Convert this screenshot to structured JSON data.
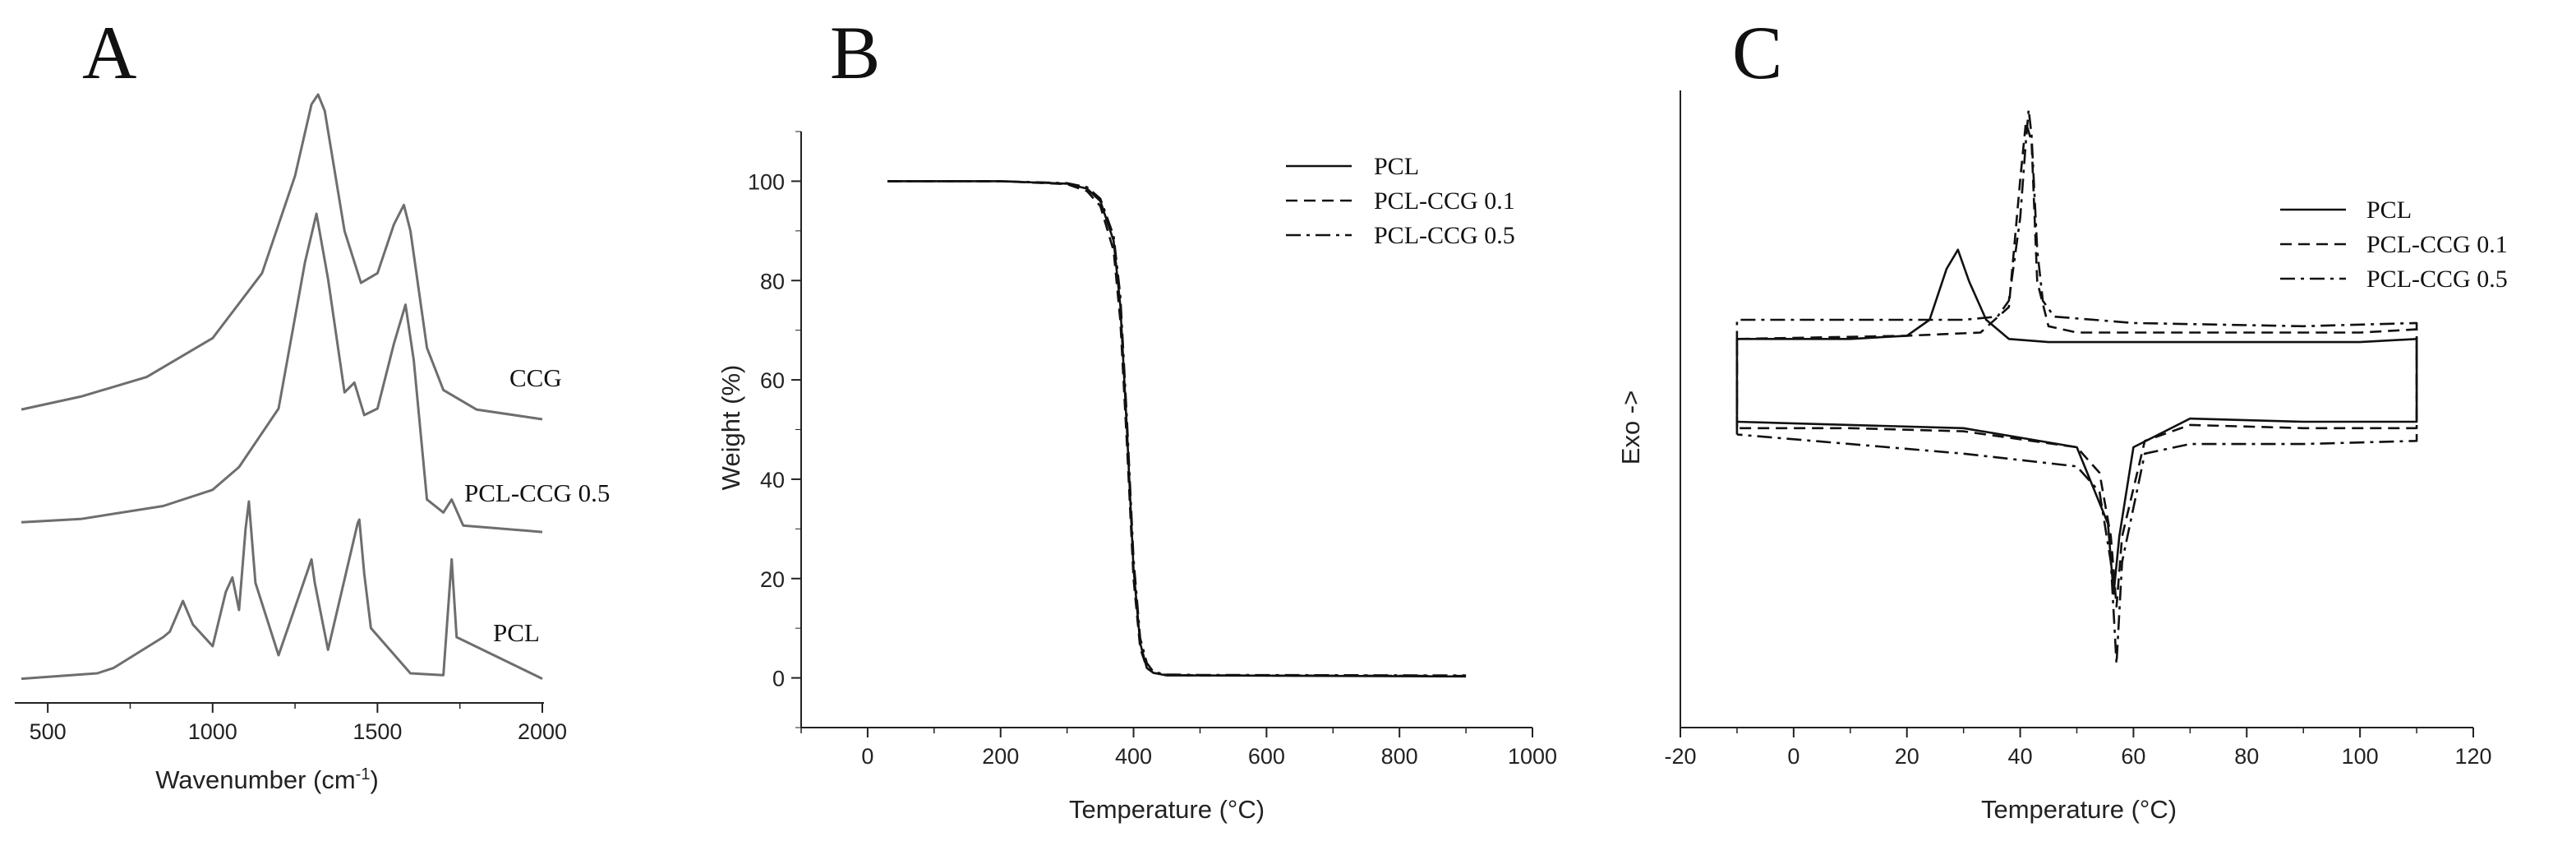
{
  "chart_data": [
    {
      "panel": "A",
      "type": "line",
      "xlabel": "Wavenumber (cm",
      "xlabel_sup": "-1",
      "xlabel_close": ")",
      "xlim": [
        400,
        2000
      ],
      "xticks": [
        500,
        1000,
        1500,
        2000
      ],
      "y_axis_shown": false,
      "color": "#6e6e6e",
      "series": [
        {
          "name": "CCG",
          "baseline": "top",
          "x": [
            420,
            600,
            800,
            1000,
            1150,
            1250,
            1300,
            1320,
            1340,
            1400,
            1450,
            1500,
            1550,
            1580,
            1600,
            1650,
            1700,
            1800,
            2000
          ],
          "y": [
            0.03,
            0.07,
            0.13,
            0.25,
            0.45,
            0.75,
            0.97,
            1.0,
            0.95,
            0.58,
            0.42,
            0.45,
            0.6,
            0.66,
            0.58,
            0.22,
            0.09,
            0.03,
            0.0
          ]
        },
        {
          "name": "PCL-CCG 0.5",
          "baseline": "middle",
          "x": [
            420,
            600,
            850,
            1000,
            1080,
            1200,
            1280,
            1315,
            1350,
            1400,
            1430,
            1460,
            1500,
            1550,
            1585,
            1610,
            1650,
            1700,
            1725,
            1760,
            2000
          ],
          "y": [
            0.05,
            0.06,
            0.1,
            0.15,
            0.22,
            0.4,
            0.85,
            1.0,
            0.8,
            0.45,
            0.48,
            0.38,
            0.4,
            0.6,
            0.72,
            0.55,
            0.12,
            0.08,
            0.12,
            0.04,
            0.02
          ]
        },
        {
          "name": "PCL",
          "baseline": "bottom",
          "x": [
            420,
            650,
            700,
            850,
            870,
            910,
            940,
            960,
            1000,
            1040,
            1060,
            1080,
            1100,
            1110,
            1130,
            1200,
            1285,
            1300,
            1310,
            1350,
            1440,
            1445,
            1460,
            1480,
            1600,
            1700,
            1725,
            1740,
            2000
          ],
          "y": [
            0.02,
            0.05,
            0.08,
            0.25,
            0.28,
            0.45,
            0.32,
            0.28,
            0.2,
            0.5,
            0.58,
            0.4,
            0.85,
            1.0,
            0.55,
            0.15,
            0.6,
            0.68,
            0.55,
            0.18,
            0.88,
            0.9,
            0.6,
            0.3,
            0.05,
            0.04,
            0.68,
            0.25,
            0.02
          ]
        }
      ]
    },
    {
      "panel": "B",
      "type": "line",
      "xlabel": "Temperature (",
      "xlabel_unit": "°C)",
      "ylabel": "Weight (%)",
      "xlim": [
        -100,
        1000
      ],
      "ylim": [
        -10,
        110
      ],
      "xticks": [
        0,
        200,
        400,
        600,
        800,
        1000
      ],
      "yticks": [
        0,
        20,
        40,
        60,
        80,
        100
      ],
      "legend_position": "top-right",
      "series": [
        {
          "name": "PCL",
          "style": "solid",
          "x": [
            30,
            100,
            200,
            300,
            330,
            350,
            370,
            380,
            390,
            400,
            410,
            420,
            430,
            450,
            500,
            900
          ],
          "y": [
            100,
            100,
            100,
            99.5,
            98.5,
            96,
            88,
            75,
            50,
            22,
            7,
            2,
            1,
            0.5,
            0.5,
            0.3
          ]
        },
        {
          "name": "PCL-CCG 0.1",
          "style": "dashed",
          "x": [
            30,
            100,
            200,
            300,
            330,
            350,
            370,
            380,
            390,
            400,
            410,
            420,
            430,
            450,
            500,
            900
          ],
          "y": [
            100,
            100,
            100,
            99.4,
            98,
            95,
            86,
            72,
            47,
            20,
            6,
            2,
            1,
            0.6,
            0.5,
            0.4
          ]
        },
        {
          "name": "PCL-CCG 0.5",
          "style": "dashdot",
          "x": [
            30,
            100,
            200,
            300,
            330,
            350,
            370,
            380,
            390,
            400,
            410,
            420,
            430,
            450,
            500,
            900
          ],
          "y": [
            100,
            100,
            100,
            99.6,
            98.8,
            96.5,
            89,
            77,
            52,
            24,
            8,
            3,
            1.2,
            0.7,
            0.6,
            0.5
          ]
        }
      ]
    },
    {
      "panel": "C",
      "type": "line",
      "xlabel": "Temperature (",
      "xlabel_unit": "°C)",
      "ylabel": "Exo ->",
      "xlim": [
        -20,
        120
      ],
      "ylim": [
        0,
        100
      ],
      "xticks": [
        -20,
        0,
        20,
        40,
        60,
        80,
        100,
        120
      ],
      "y_ticks_shown": false,
      "legend_position": "top-right",
      "series": [
        {
          "name": "PCL",
          "style": "solid",
          "loops": [
            {
              "x": [
                -10,
                -10,
                10,
                20,
                24,
                27,
                29,
                31,
                34,
                38,
                45,
                60,
                80,
                100,
                110,
                110,
                90,
                70,
                60,
                57.5,
                56.5,
                55.5,
                50,
                30,
                10,
                -10
              ],
              "y": [
                48,
                61,
                61,
                61.5,
                64,
                72,
                75,
                70,
                64,
                61,
                60.5,
                60.5,
                60.5,
                60.5,
                61,
                48,
                48,
                48.5,
                44,
                30,
                21,
                32,
                44,
                47,
                47.5,
                48
              ]
            }
          ]
        },
        {
          "name": "PCL-CCG 0.1",
          "style": "dashed",
          "loops": [
            {
              "x": [
                -10,
                -10,
                20,
                33,
                38,
                40,
                41,
                42,
                43,
                45,
                50,
                70,
                100,
                110,
                110,
                90,
                70,
                62,
                58,
                57,
                56,
                54,
                50,
                30,
                10,
                -10
              ],
              "y": [
                47,
                61,
                61.5,
                62,
                66,
                86,
                95,
                92,
                70,
                63,
                62,
                62,
                62,
                62.5,
                47,
                47,
                47.5,
                45,
                30,
                19,
                30,
                40,
                44,
                46.5,
                47,
                47
              ]
            }
          ]
        },
        {
          "name": "PCL-CCG 0.5",
          "style": "dashdot",
          "loops": [
            {
              "x": [
                -10,
                -10,
                10,
                30,
                36,
                38,
                40,
                41,
                41.5,
                42,
                43,
                44,
                46,
                60,
                90,
                110,
                110,
                90,
                70,
                62,
                58,
                57,
                56,
                54,
                50,
                30,
                10,
                -10
              ],
              "y": [
                46,
                64,
                64,
                64,
                64.5,
                67,
                80,
                92,
                97,
                93,
                75,
                67,
                64.5,
                63.5,
                63,
                63.5,
                45,
                44.5,
                44.5,
                43,
                26,
                10,
                26,
                37,
                41,
                43,
                44.5,
                46
              ]
            }
          ]
        }
      ]
    }
  ],
  "panel_letters": [
    "A",
    "B",
    "C"
  ],
  "panelA_labels": [
    "CCG",
    "PCL-CCG 0.5",
    "PCL"
  ]
}
